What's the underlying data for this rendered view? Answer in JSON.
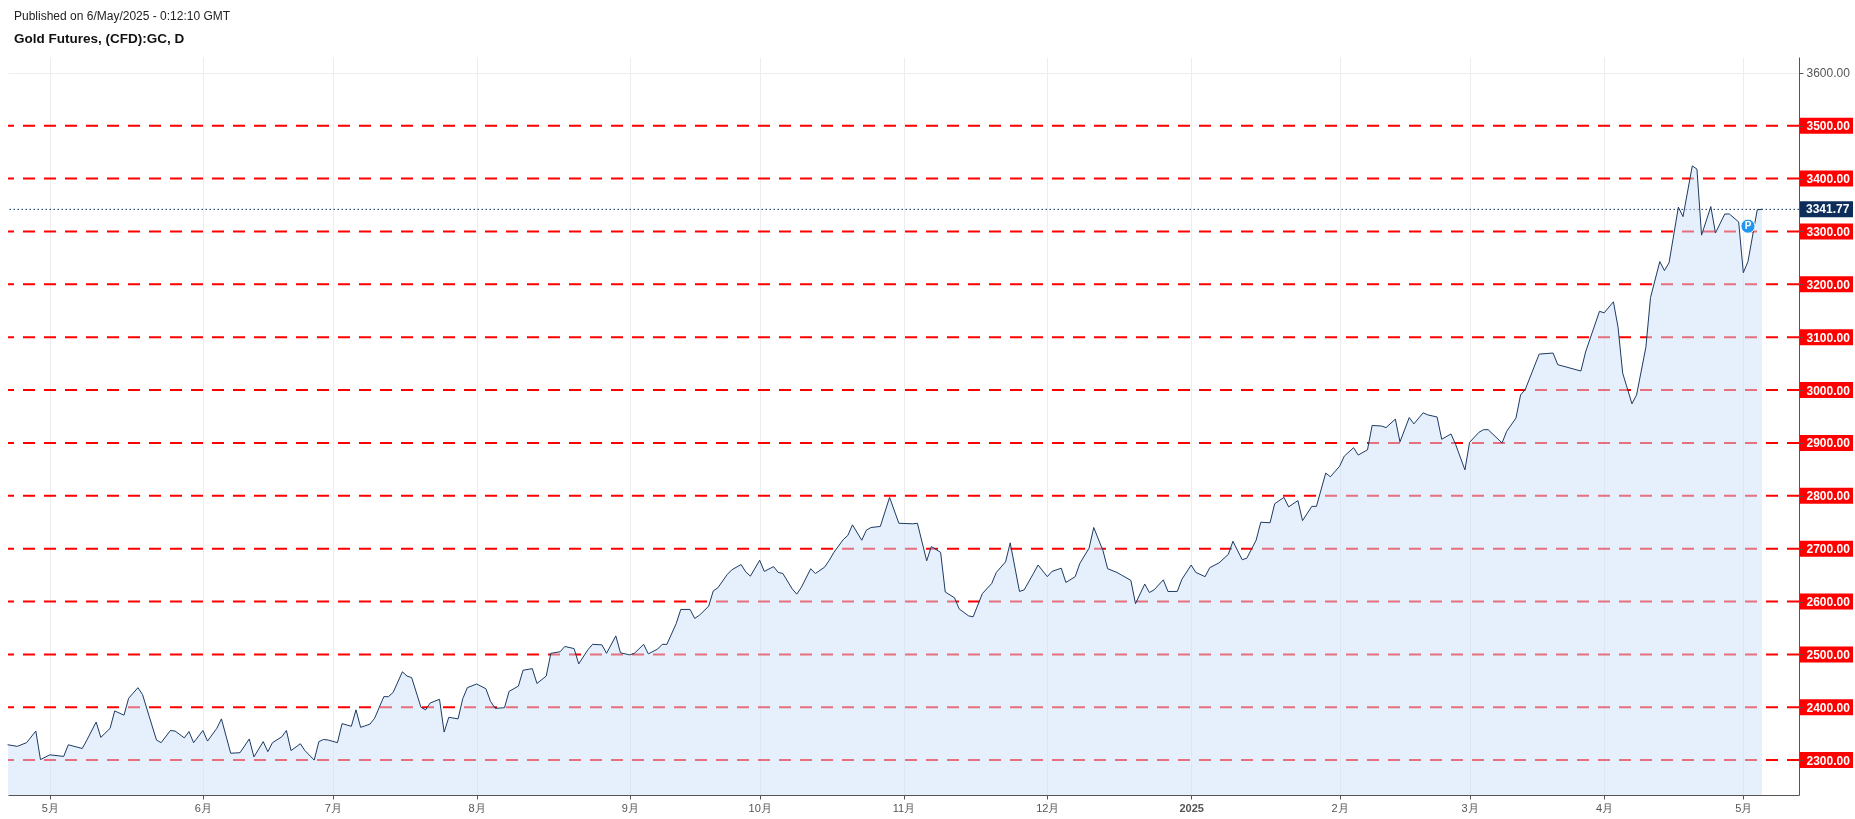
{
  "chart_data": {
    "type": "area",
    "title": "Gold Futures, (CFD):GC, D",
    "annotations": [
      "Published on 6/May/2025 - 0:12:10 GMT",
      {
        "text": "P",
        "x": "2025-05-02",
        "y": 3310
      }
    ],
    "x": [
      "2024-04-22",
      "2024-04-24",
      "2024-04-26",
      "2024-04-28",
      "2024-04-29",
      "2024-05-01",
      "2024-05-04",
      "2024-05-05",
      "2024-05-08",
      "2024-05-09",
      "2024-05-11",
      "2024-05-12",
      "2024-05-14",
      "2024-05-15",
      "2024-05-17",
      "2024-05-18",
      "2024-05-20",
      "2024-05-21",
      "2024-05-22",
      "2024-05-24",
      "2024-05-25",
      "2024-05-27",
      "2024-05-28",
      "2024-05-30",
      "2024-05-31",
      "2024-06-01",
      "2024-06-03",
      "2024-06-04",
      "2024-06-06",
      "2024-06-07",
      "2024-06-09",
      "2024-06-11",
      "2024-06-13",
      "2024-06-14",
      "2024-06-16",
      "2024-06-17",
      "2024-06-18",
      "2024-06-20",
      "2024-06-21",
      "2024-06-22",
      "2024-06-24",
      "2024-06-25",
      "2024-06-27",
      "2024-06-28",
      "2024-06-29",
      "2024-06-30",
      "2024-07-02",
      "2024-07-03",
      "2024-07-05",
      "2024-07-06",
      "2024-07-07",
      "2024-07-09",
      "2024-07-10",
      "2024-07-12",
      "2024-07-13",
      "2024-07-14",
      "2024-07-16",
      "2024-07-17",
      "2024-07-18",
      "2024-07-20",
      "2024-07-21",
      "2024-07-22",
      "2024-07-24",
      "2024-07-25",
      "2024-07-26",
      "2024-07-28",
      "2024-07-29",
      "2024-07-30",
      "2024-08-01",
      "2024-08-03",
      "2024-08-04",
      "2024-08-05",
      "2024-08-07",
      "2024-08-08",
      "2024-08-10",
      "2024-08-11",
      "2024-08-13",
      "2024-08-14",
      "2024-08-16",
      "2024-08-17",
      "2024-08-19",
      "2024-08-20",
      "2024-08-22",
      "2024-08-23",
      "2024-08-25",
      "2024-08-26",
      "2024-08-28",
      "2024-08-29",
      "2024-08-31",
      "2024-09-01",
      "2024-09-03",
      "2024-09-04",
      "2024-09-06",
      "2024-09-07",
      "2024-09-09",
      "2024-09-10",
      "2024-09-11",
      "2024-09-13",
      "2024-09-14",
      "2024-09-16",
      "2024-09-17",
      "2024-09-18",
      "2024-09-20",
      "2024-09-21",
      "2024-09-22",
      "2024-09-24",
      "2024-09-25",
      "2024-09-27",
      "2024-09-28",
      "2024-09-29",
      "2024-10-01",
      "2024-10-02",
      "2024-10-04",
      "2024-10-05",
      "2024-10-06",
      "2024-10-08",
      "2024-10-09",
      "2024-10-10",
      "2024-10-12",
      "2024-10-13",
      "2024-10-15",
      "2024-10-16",
      "2024-10-17",
      "2024-10-19",
      "2024-10-20",
      "2024-10-21",
      "2024-10-23",
      "2024-10-24",
      "2024-10-25",
      "2024-10-27",
      "2024-10-29",
      "2024-10-31",
      "2024-11-03",
      "2024-11-04",
      "2024-11-06",
      "2024-11-07",
      "2024-11-09",
      "2024-11-10",
      "2024-11-12",
      "2024-11-13",
      "2024-11-15",
      "2024-11-16",
      "2024-11-18",
      "2024-11-20",
      "2024-11-21",
      "2024-11-23",
      "2024-11-24",
      "2024-11-26",
      "2024-11-27",
      "2024-11-29",
      "2024-11-30",
      "2024-12-02",
      "2024-12-03",
      "2024-12-05",
      "2024-12-06",
      "2024-12-08",
      "2024-12-09",
      "2024-12-11",
      "2024-12-12",
      "2024-12-14",
      "2024-12-15",
      "2024-12-17",
      "2024-12-18",
      "2024-12-20",
      "2024-12-21",
      "2024-12-23",
      "2024-12-24",
      "2024-12-25",
      "2024-12-27",
      "2024-12-28",
      "2024-12-30",
      "2024-12-31",
      "2025-01-02",
      "2025-01-03",
      "2025-01-05",
      "2025-01-06",
      "2025-01-08",
      "2025-01-10",
      "2025-01-11",
      "2025-01-13",
      "2025-01-14",
      "2025-01-16",
      "2025-01-17",
      "2025-01-19",
      "2025-01-20",
      "2025-01-22",
      "2025-01-23",
      "2025-01-25",
      "2025-01-26",
      "2025-01-28",
      "2025-01-29",
      "2025-01-31",
      "2025-02-01",
      "2025-02-03",
      "2025-02-04",
      "2025-02-06",
      "2025-02-07",
      "2025-02-09",
      "2025-02-10",
      "2025-02-12",
      "2025-02-13",
      "2025-02-15",
      "2025-02-16",
      "2025-02-18",
      "2025-02-19",
      "2025-02-21",
      "2025-02-22",
      "2025-02-24",
      "2025-02-25",
      "2025-02-27",
      "2025-02-28",
      "2025-03-02",
      "2025-03-03",
      "2025-03-05",
      "2025-03-06",
      "2025-03-07",
      "2025-03-10",
      "2025-03-11",
      "2025-03-13",
      "2025-03-14",
      "2025-03-15",
      "2025-03-18",
      "2025-03-21",
      "2025-03-22",
      "2025-03-27",
      "2025-03-28",
      "2025-03-31",
      "2025-04-01",
      "2025-04-03",
      "2025-04-04",
      "2025-04-05",
      "2025-04-07",
      "2025-04-08",
      "2025-04-10",
      "2025-04-11",
      "2025-04-13",
      "2025-04-14",
      "2025-04-15",
      "2025-04-17",
      "2025-04-18",
      "2025-04-20",
      "2025-04-21",
      "2025-04-22",
      "2025-04-24",
      "2025-04-25",
      "2025-04-27",
      "2025-04-28",
      "2025-04-30",
      "2025-05-01",
      "2025-05-02",
      "2025-05-04",
      "2025-05-05"
    ],
    "series": [
      {
        "color": "#1d3b63",
        "values": [
          2329,
          2326,
          2333,
          2355,
          2301,
          2310,
          2307,
          2329,
          2322,
          2338,
          2372,
          2343,
          2360,
          2393,
          2385,
          2417,
          2437,
          2424,
          2395,
          2338,
          2333,
          2356,
          2355,
          2342,
          2354,
          2333,
          2356,
          2336,
          2360,
          2378,
          2313,
          2314,
          2340,
          2306,
          2335,
          2316,
          2333,
          2344,
          2356,
          2318,
          2331,
          2318,
          2300,
          2335,
          2339,
          2338,
          2333,
          2369,
          2364,
          2395,
          2362,
          2368,
          2379,
          2420,
          2420,
          2428,
          2467,
          2459,
          2456,
          2400,
          2395,
          2408,
          2415,
          2353,
          2381,
          2378,
          2416,
          2437,
          2444,
          2435,
          2411,
          2398,
          2399,
          2430,
          2440,
          2470,
          2473,
          2445,
          2459,
          2502,
          2505,
          2515,
          2511,
          2482,
          2509,
          2519,
          2518,
          2502,
          2535,
          2503,
          2499,
          2502,
          2519,
          2501,
          2510,
          2519,
          2519,
          2558,
          2585,
          2585,
          2568,
          2574,
          2591,
          2620,
          2626,
          2651,
          2660,
          2670,
          2656,
          2648,
          2678,
          2657,
          2666,
          2655,
          2653,
          2624,
          2614,
          2627,
          2662,
          2653,
          2665,
          2678,
          2693,
          2717,
          2725,
          2745,
          2716,
          2735,
          2740,
          2742,
          2797,
          2748,
          2747,
          2748,
          2677,
          2704,
          2693,
          2618,
          2607,
          2586,
          2573,
          2571,
          2615,
          2634,
          2655,
          2675,
          2711,
          2619,
          2622,
          2653,
          2669,
          2647,
          2657,
          2663,
          2636,
          2647,
          2672,
          2701,
          2740,
          2696,
          2662,
          2655,
          2650,
          2640,
          2596,
          2633,
          2617,
          2622,
          2641,
          2619,
          2619,
          2642,
          2669,
          2655,
          2647,
          2664,
          2673,
          2689,
          2714,
          2679,
          2682,
          2716,
          2750,
          2749,
          2785,
          2797,
          2779,
          2791,
          2753,
          2780,
          2780,
          2843,
          2836,
          2856,
          2875,
          2891,
          2877,
          2887,
          2933,
          2932,
          2929,
          2945,
          2902,
          2948,
          2936,
          2957,
          2953,
          2949,
          2907,
          2917,
          2897,
          2849,
          2901,
          2920,
          2925,
          2925,
          2900,
          2922,
          2947,
          2991,
          3001,
          3068,
          3070,
          3048,
          3036,
          3072,
          3149,
          3146,
          3167,
          3119,
          3032,
          2974,
          2991,
          3081,
          3175,
          3243,
          3226,
          3241,
          3346,
          3328,
          3424,
          3418,
          3293,
          3347,
          3297,
          3333,
          3333,
          3318,
          3222,
          3243,
          3341,
          3342
        ]
      }
    ],
    "xlim": [
      "2024-04-22",
      "2025-05-13"
    ],
    "ylim": [
      2234,
      3630
    ],
    "xticks": [
      {
        "value": "2024-05-01",
        "label": "5月"
      },
      {
        "value": "2024-06-03",
        "label": "6月"
      },
      {
        "value": "2024-07-01",
        "label": "7月"
      },
      {
        "value": "2024-08-01",
        "label": "8月"
      },
      {
        "value": "2024-09-03",
        "label": "9月"
      },
      {
        "value": "2024-10-01",
        "label": "10月"
      },
      {
        "value": "2024-11-01",
        "label": "11月"
      },
      {
        "value": "2024-12-02",
        "label": "12月"
      },
      {
        "value": "2025-01-02",
        "label": "2025"
      },
      {
        "value": "2025-02-03",
        "label": "2月"
      },
      {
        "value": "2025-03-03",
        "label": "3月"
      },
      {
        "value": "2025-04-01",
        "label": "4月"
      },
      {
        "value": "2025-05-01",
        "label": "5月"
      }
    ],
    "yticks": [
      {
        "value": 2300,
        "label": "2300.00"
      },
      {
        "value": 2400,
        "label": "2400.00"
      },
      {
        "value": 2500,
        "label": "2500.00"
      },
      {
        "value": 2600,
        "label": "2600.00"
      },
      {
        "value": 2700,
        "label": "2700.00"
      },
      {
        "value": 2800,
        "label": "2800.00"
      },
      {
        "value": 2900,
        "label": "2900.00"
      },
      {
        "value": 3000,
        "label": "3000.00"
      },
      {
        "value": 3100,
        "label": "3100.00"
      },
      {
        "value": 3200,
        "label": "3200.00"
      },
      {
        "value": 3300,
        "label": "3300.00"
      },
      {
        "value": 3400,
        "label": "3400.00"
      },
      {
        "value": 3500,
        "label": "3500.00"
      },
      {
        "value": 3600,
        "label": "3600.00"
      }
    ],
    "grid": true,
    "ref_lines": [
      {
        "axis": "y",
        "value": 3500,
        "color": "#ff0000",
        "line_style": "dashed"
      },
      {
        "axis": "y",
        "value": 3400,
        "color": "#ff0000",
        "line_style": "dashed"
      },
      {
        "axis": "y",
        "value": 3300,
        "color": "#ff0000",
        "line_style": "dashed"
      },
      {
        "axis": "y",
        "value": 3200,
        "color": "#ff0000",
        "line_style": "dashed"
      },
      {
        "axis": "y",
        "value": 3100,
        "color": "#ff0000",
        "line_style": "dashed"
      },
      {
        "axis": "y",
        "value": 3000,
        "color": "#ff0000",
        "line_style": "dashed"
      },
      {
        "axis": "y",
        "value": 2900,
        "color": "#ff0000",
        "line_style": "dashed"
      },
      {
        "axis": "y",
        "value": 2800,
        "color": "#ff0000",
        "line_style": "dashed"
      },
      {
        "axis": "y",
        "value": 2700,
        "color": "#ff0000",
        "line_style": "dashed"
      },
      {
        "axis": "y",
        "value": 2600,
        "color": "#ff0000",
        "line_style": "dashed"
      },
      {
        "axis": "y",
        "value": 2500,
        "color": "#ff0000",
        "line_style": "dashed"
      },
      {
        "axis": "y",
        "value": 2400,
        "color": "#ff0000",
        "line_style": "dashed"
      },
      {
        "axis": "y",
        "value": 2300,
        "color": "#ff0000",
        "line_style": "dashed"
      },
      {
        "axis": "y",
        "value": 3341.77,
        "label": "3341.77",
        "color": "#0d2e5a",
        "line_style": "dotted"
      }
    ]
  }
}
